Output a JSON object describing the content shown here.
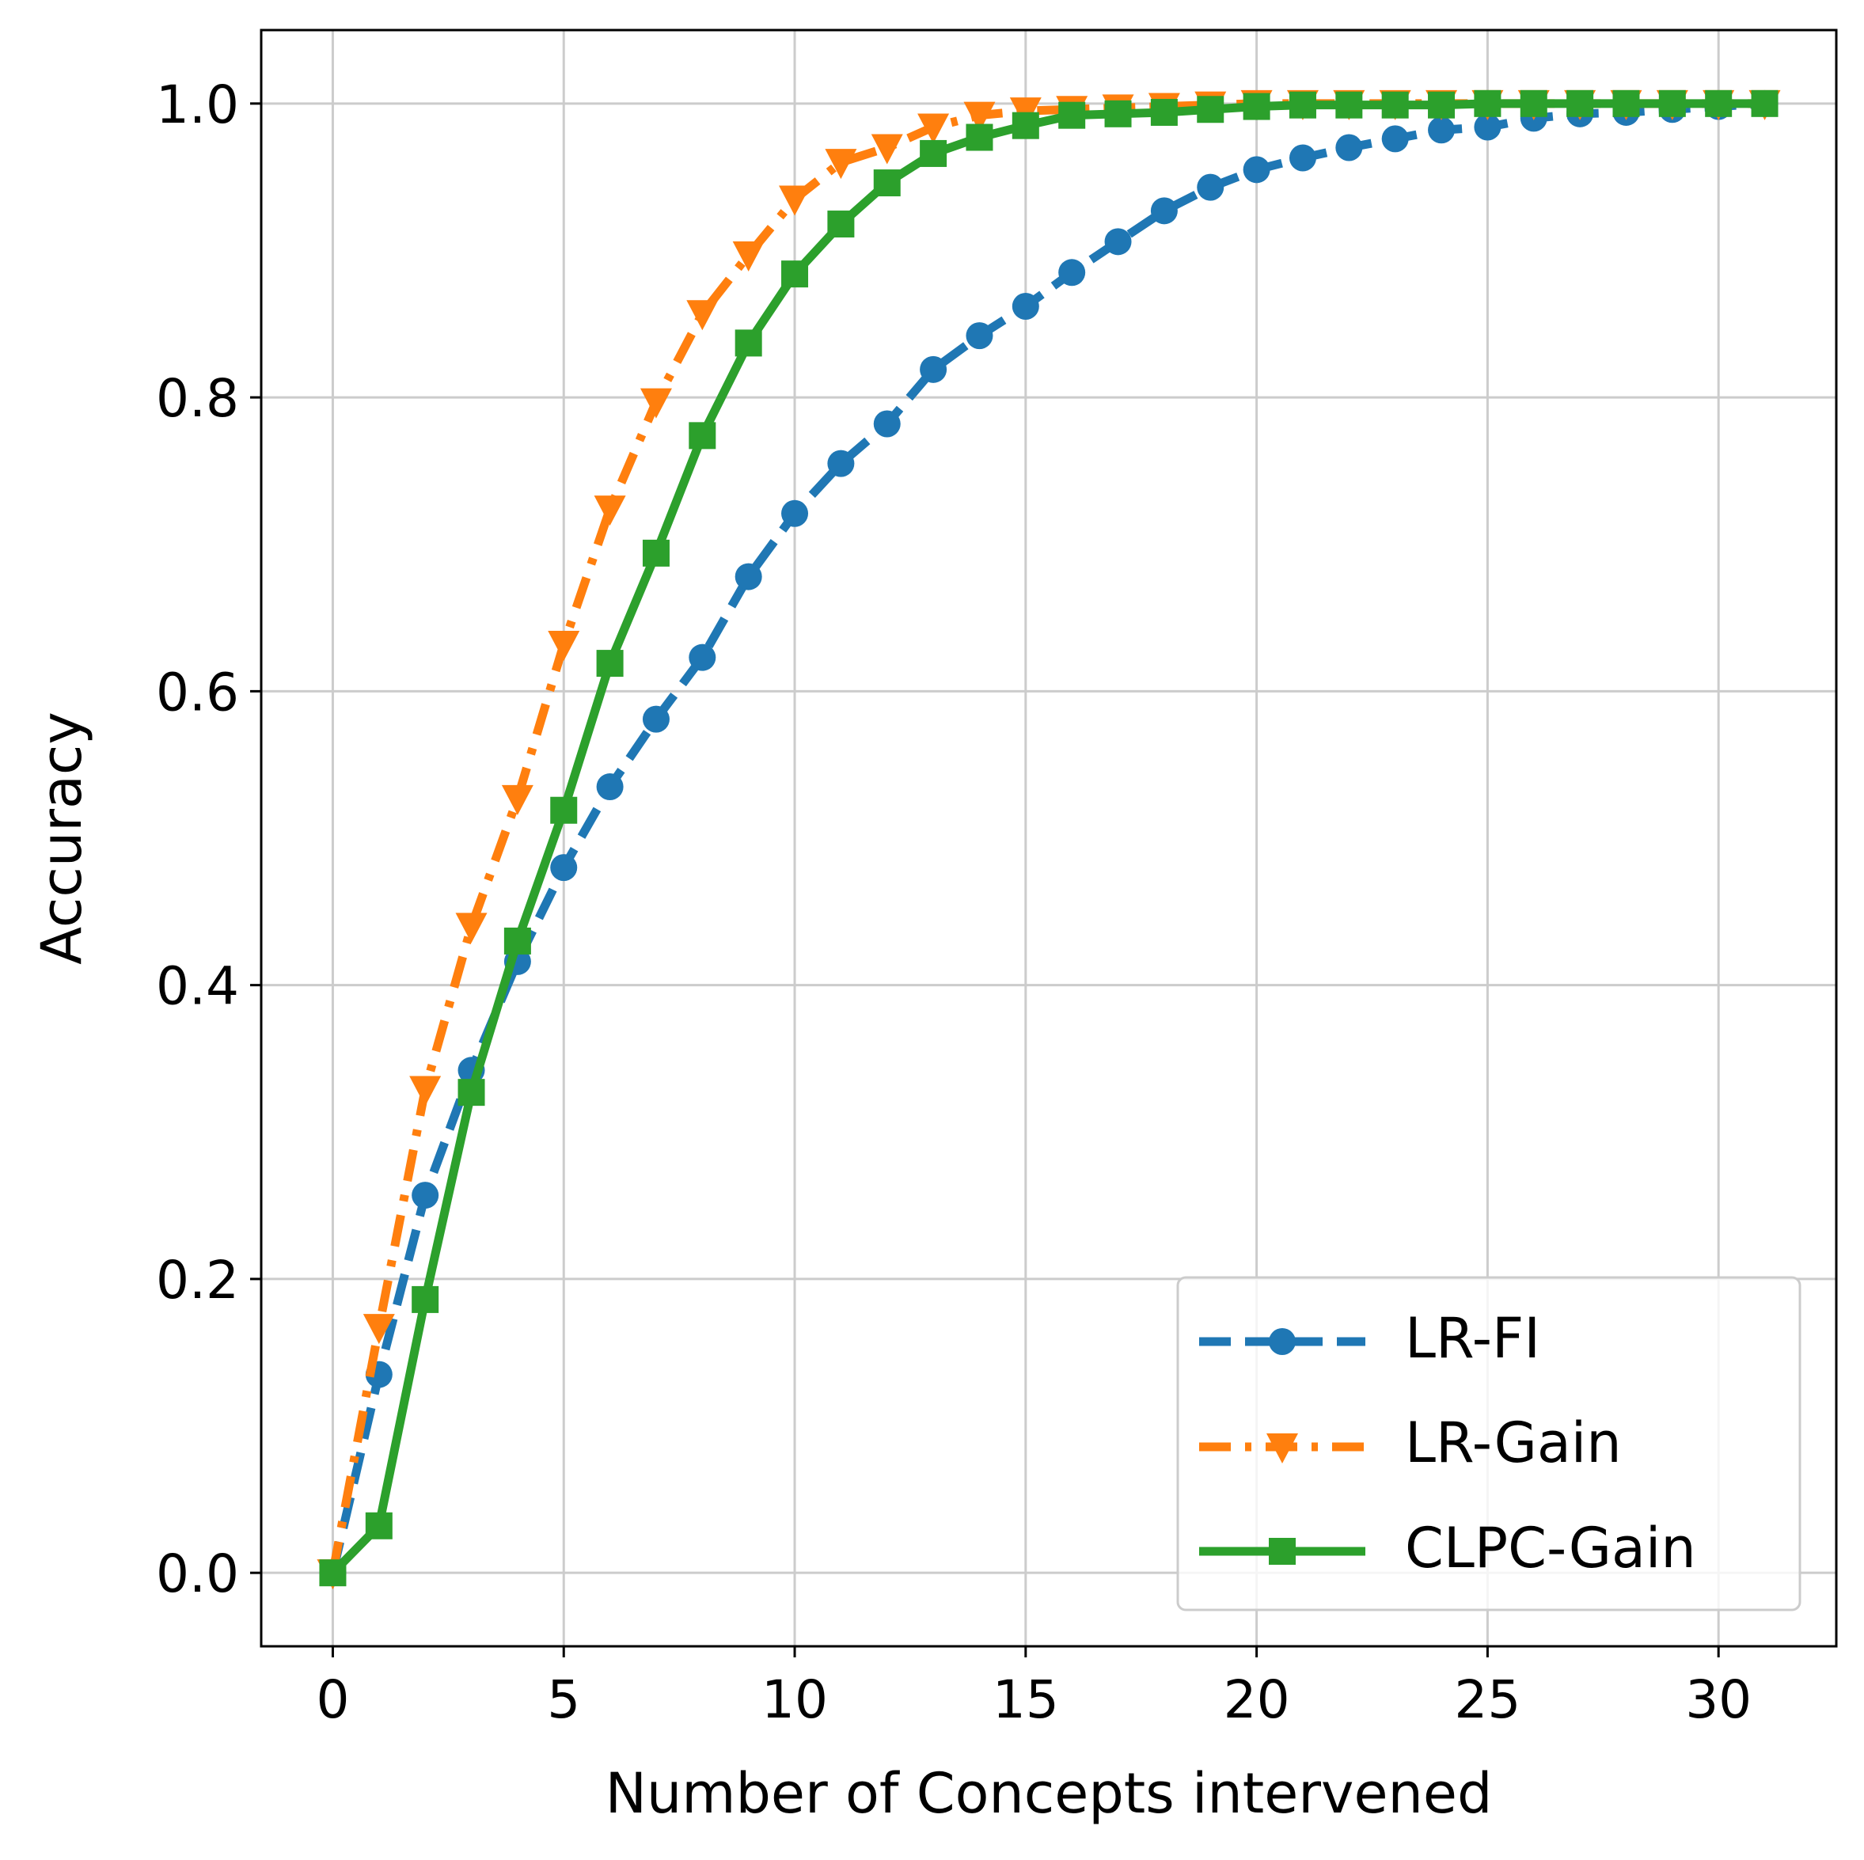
{
  "chart_data": {
    "type": "line",
    "title": "",
    "xlabel": "Number of Concepts intervened",
    "ylabel": "Accuracy",
    "xlim": [
      -1.55,
      32.55
    ],
    "ylim": [
      -0.05,
      1.05
    ],
    "xticks": [
      0,
      5,
      10,
      15,
      20,
      25,
      30
    ],
    "xtick_labels": [
      "0",
      "5",
      "10",
      "15",
      "20",
      "25",
      "30"
    ],
    "yticks": [
      0.0,
      0.2,
      0.4,
      0.6,
      0.8,
      1.0
    ],
    "ytick_labels": [
      "0.0",
      "0.2",
      "0.4",
      "0.6",
      "0.8",
      "1.0"
    ],
    "grid": true,
    "legend_position": "bottom-right",
    "x": [
      0,
      1,
      2,
      3,
      4,
      5,
      6,
      7,
      8,
      9,
      10,
      11,
      12,
      13,
      14,
      15,
      16,
      17,
      18,
      19,
      20,
      21,
      22,
      23,
      24,
      25,
      26,
      27,
      28,
      29,
      30,
      31
    ],
    "series": [
      {
        "name": "LR-FI",
        "color": "#1f77b4",
        "line_style": "dashed",
        "marker": "circle",
        "values": [
          0.0,
          0.135,
          0.257,
          0.342,
          0.416,
          0.48,
          0.535,
          0.581,
          0.623,
          0.678,
          0.721,
          0.755,
          0.782,
          0.819,
          0.842,
          0.862,
          0.885,
          0.906,
          0.927,
          0.943,
          0.955,
          0.963,
          0.97,
          0.976,
          0.982,
          0.984,
          0.99,
          0.993,
          0.994,
          0.996,
          0.998,
          1.0
        ]
      },
      {
        "name": "LR-Gain",
        "color": "#ff7f0e",
        "line_style": "dashdot",
        "marker": "triangle-down",
        "values": [
          0.0,
          0.167,
          0.329,
          0.44,
          0.527,
          0.632,
          0.724,
          0.797,
          0.857,
          0.897,
          0.935,
          0.96,
          0.97,
          0.984,
          0.992,
          0.995,
          0.996,
          0.997,
          0.998,
          0.999,
          1.0,
          1.0,
          1.0,
          1.0,
          1.0,
          1.0,
          1.0,
          1.0,
          1.0,
          1.0,
          1.0,
          1.0
        ]
      },
      {
        "name": "CLPC-Gain",
        "color": "#2ca02c",
        "line_style": "solid",
        "marker": "square",
        "values": [
          0.0,
          0.032,
          0.186,
          0.327,
          0.43,
          0.519,
          0.619,
          0.694,
          0.774,
          0.837,
          0.884,
          0.918,
          0.946,
          0.966,
          0.977,
          0.985,
          0.992,
          0.993,
          0.994,
          0.996,
          0.998,
          0.999,
          0.999,
          0.999,
          0.999,
          1.0,
          1.0,
          1.0,
          1.0,
          1.0,
          1.0,
          1.0
        ]
      }
    ]
  }
}
